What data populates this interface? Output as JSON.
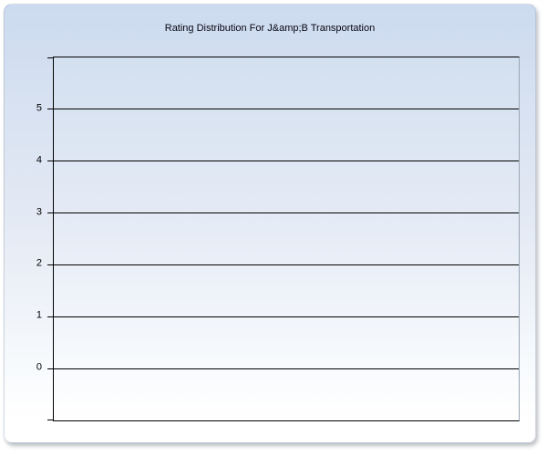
{
  "chart_data": {
    "type": "bar",
    "title": "Rating Distribution For J&amp;B Transportation",
    "categories": [],
    "values": [],
    "series": [],
    "xlabel": "",
    "ylabel": "",
    "ylim": [
      -1,
      6
    ],
    "yticks": [
      0,
      1,
      2,
      3,
      4,
      5
    ],
    "ytick_labels": [
      "0",
      "1",
      "2",
      "3",
      "4",
      "5"
    ],
    "grid": true,
    "legend_visible": false,
    "plot_empty": true,
    "colors": {
      "panel_top": "#ccdbef",
      "panel_bottom": "#ffffff",
      "plot_top": "#d3e0f0",
      "plot_bottom": "#ffffff",
      "gridline": "#000000",
      "axis": "#000000",
      "plot_right_border": "#9aa5b4",
      "title_text": "#05050f",
      "tick_label_text": "#000000",
      "page_background": "#ffffff"
    }
  }
}
